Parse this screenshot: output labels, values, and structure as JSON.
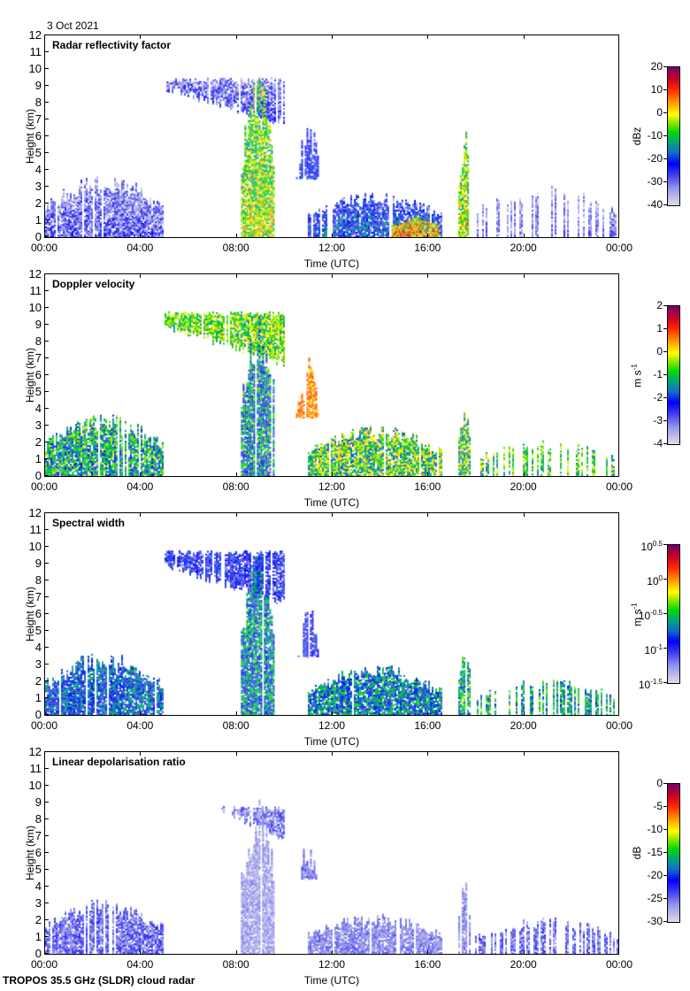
{
  "date_label": "3 Oct 2021",
  "footer": "TROPOS 35.5 GHz (SLDR) cloud radar",
  "chart_data": [
    {
      "type": "heatmap",
      "title": "Radar reflectivity factor",
      "xlabel": "Time (UTC)",
      "ylabel": "Height (km)",
      "xlim_hours": [
        0,
        24
      ],
      "ylim": [
        0,
        12
      ],
      "xticks": [
        "00:00",
        "04:00",
        "08:00",
        "12:00",
        "16:00",
        "20:00",
        "00:00"
      ],
      "yticks": [
        "0",
        "1",
        "2",
        "3",
        "4",
        "5",
        "6",
        "7",
        "8",
        "9",
        "10",
        "11",
        "12"
      ],
      "colorbar": {
        "unit": "dBz",
        "min": -40,
        "max": 20,
        "ticks": [
          "-40",
          "-30",
          "-20",
          "-10",
          "0",
          "10",
          "20"
        ]
      },
      "features": [
        {
          "name": "low cloud 00-05",
          "t": [
            0,
            4.9
          ],
          "h": [
            0,
            3.5
          ],
          "v": -28,
          "spread": 8
        },
        {
          "name": "anvil 05-10",
          "t": [
            5,
            10
          ],
          "h": [
            6.5,
            9.5
          ],
          "v": -28,
          "spread": 8
        },
        {
          "name": "convective core 08-10",
          "t": [
            8.2,
            9.6
          ],
          "h": [
            0,
            9
          ],
          "v": -2,
          "spread": 10
        },
        {
          "name": "mid cloud 10.5-11.5",
          "t": [
            10.5,
            11.5
          ],
          "h": [
            3.5,
            6.5
          ],
          "v": -22,
          "spread": 6
        },
        {
          "name": "low cloud 11-16.5",
          "t": [
            11,
            16.6
          ],
          "h": [
            0,
            2.5
          ],
          "v": -20,
          "spread": 10
        },
        {
          "name": "precip 14.5-16.5",
          "t": [
            14.5,
            16.5
          ],
          "h": [
            0,
            1.2
          ],
          "v": 5,
          "spread": 8
        },
        {
          "name": "shower 17.3-17.8",
          "t": [
            17.3,
            17.8
          ],
          "h": [
            0,
            6
          ],
          "v": 0,
          "spread": 10
        },
        {
          "name": "scattered 18-24",
          "t": [
            18,
            24
          ],
          "h": [
            0,
            3
          ],
          "v": -30,
          "spread": 6
        }
      ]
    },
    {
      "type": "heatmap",
      "title": "Doppler velocity",
      "xlabel": "Time (UTC)",
      "ylabel": "Height (km)",
      "xlim_hours": [
        0,
        24
      ],
      "ylim": [
        0,
        12
      ],
      "xticks": [
        "00:00",
        "04:00",
        "08:00",
        "12:00",
        "16:00",
        "20:00",
        "00:00"
      ],
      "yticks": [
        "0",
        "1",
        "2",
        "3",
        "4",
        "5",
        "6",
        "7",
        "8",
        "9",
        "10",
        "11",
        "12"
      ],
      "colorbar": {
        "unit": "m s-1",
        "unit_base": "m s",
        "unit_sup": "-1",
        "min": -4,
        "max": 2,
        "ticks": [
          "-4",
          "-3",
          "-2",
          "-1",
          "0",
          "1",
          "2"
        ]
      },
      "features": [
        {
          "name": "low cloud 00-05",
          "t": [
            0,
            4.9
          ],
          "h": [
            0,
            3.5
          ],
          "v": -1.2,
          "spread": 1.0
        },
        {
          "name": "anvil 05-10",
          "t": [
            5,
            10
          ],
          "h": [
            6.5,
            9.8
          ],
          "v": -0.6,
          "spread": 0.9
        },
        {
          "name": "convective core 08-10",
          "t": [
            8.2,
            9.6
          ],
          "h": [
            0,
            9
          ],
          "v": -1.6,
          "spread": 1.2
        },
        {
          "name": "mid cloud 10.5-11.5",
          "t": [
            10.5,
            11.5
          ],
          "h": [
            3.5,
            6.5
          ],
          "v": 0.5,
          "spread": 0.5
        },
        {
          "name": "low cloud 11-16.5",
          "t": [
            11,
            16.6
          ],
          "h": [
            0,
            2.8
          ],
          "v": -0.8,
          "spread": 1.2
        },
        {
          "name": "shower 17.3-17.8",
          "t": [
            17.3,
            17.8
          ],
          "h": [
            0,
            4
          ],
          "v": -0.8,
          "spread": 1.2
        },
        {
          "name": "scattered 18-24",
          "t": [
            18,
            24
          ],
          "h": [
            0,
            2
          ],
          "v": -0.8,
          "spread": 1.0
        }
      ]
    },
    {
      "type": "heatmap",
      "title": "Spectral width",
      "xlabel": "Time (UTC)",
      "ylabel": "Height (km)",
      "xlim_hours": [
        0,
        24
      ],
      "ylim": [
        0,
        12
      ],
      "xticks": [
        "00:00",
        "04:00",
        "08:00",
        "12:00",
        "16:00",
        "20:00",
        "00:00"
      ],
      "yticks": [
        "0",
        "1",
        "2",
        "3",
        "4",
        "5",
        "6",
        "7",
        "8",
        "9",
        "10",
        "11",
        "12"
      ],
      "colorbar": {
        "unit": "m s-1",
        "unit_base": "m s",
        "unit_sup": "-1",
        "scale": "log10",
        "min": -1.5,
        "max": 0.5,
        "ticks": [
          {
            "base": "10",
            "exp": "-1.5"
          },
          {
            "base": "10",
            "exp": "-1"
          },
          {
            "base": "10",
            "exp": "-0.5"
          },
          {
            "base": "10",
            "exp": "0"
          },
          {
            "base": "10",
            "exp": "0.5"
          }
        ]
      },
      "features": [
        {
          "name": "low cloud 00-05",
          "t": [
            0,
            4.9
          ],
          "h": [
            0,
            3.5
          ],
          "v": -0.8,
          "spread": 0.3
        },
        {
          "name": "anvil 05-10",
          "t": [
            5,
            10
          ],
          "h": [
            6.5,
            9.8
          ],
          "v": -1.0,
          "spread": 0.25
        },
        {
          "name": "convective core 08-10",
          "t": [
            8.2,
            9.6
          ],
          "h": [
            0,
            9
          ],
          "v": -0.7,
          "spread": 0.3
        },
        {
          "name": "mid cloud 10.5-11.5",
          "t": [
            10.5,
            11.5
          ],
          "h": [
            3.5,
            6.5
          ],
          "v": -1.0,
          "spread": 0.2
        },
        {
          "name": "low cloud 11-16.5",
          "t": [
            11,
            16.6
          ],
          "h": [
            0,
            2.8
          ],
          "v": -0.7,
          "spread": 0.3
        },
        {
          "name": "shower 17.3-17.8",
          "t": [
            17.3,
            17.8
          ],
          "h": [
            0,
            4
          ],
          "v": -0.6,
          "spread": 0.3
        },
        {
          "name": "scattered 18-24",
          "t": [
            18,
            24
          ],
          "h": [
            0,
            2
          ],
          "v": -0.6,
          "spread": 0.3
        }
      ]
    },
    {
      "type": "heatmap",
      "title": "Linear depolarisation ratio",
      "xlabel": "Time (UTC)",
      "ylabel": "Height (km)",
      "xlim_hours": [
        0,
        24
      ],
      "ylim": [
        0,
        12
      ],
      "xticks": [
        "00:00",
        "04:00",
        "08:00",
        "12:00",
        "16:00",
        "20:00",
        "00:00"
      ],
      "yticks": [
        "0",
        "1",
        "2",
        "3",
        "4",
        "5",
        "6",
        "7",
        "8",
        "9",
        "10",
        "11",
        "12"
      ],
      "colorbar": {
        "unit": "dB",
        "min": -30,
        "max": 0,
        "ticks": [
          "-30",
          "-25",
          "-20",
          "-15",
          "-10",
          "-5",
          "0"
        ]
      },
      "features": [
        {
          "name": "low cloud 00-05",
          "t": [
            0,
            4.9
          ],
          "h": [
            0,
            3.0
          ],
          "v": -25,
          "spread": 3
        },
        {
          "name": "anvil 07-10",
          "t": [
            7,
            10
          ],
          "h": [
            6.5,
            8.8
          ],
          "v": -26,
          "spread": 3
        },
        {
          "name": "convective core 08-10",
          "t": [
            8.2,
            9.6
          ],
          "h": [
            0,
            8.5
          ],
          "v": -27,
          "spread": 2
        },
        {
          "name": "mid cloud 10.5-11.5",
          "t": [
            10.5,
            11.5
          ],
          "h": [
            4.5,
            6.5
          ],
          "v": -25,
          "spread": 2
        },
        {
          "name": "low cloud 11-16.5",
          "t": [
            11,
            16.6
          ],
          "h": [
            0,
            2.2
          ],
          "v": -26,
          "spread": 2
        },
        {
          "name": "shower 17.3-17.8",
          "t": [
            17.3,
            17.8
          ],
          "h": [
            0,
            4
          ],
          "v": -26,
          "spread": 2
        },
        {
          "name": "scattered 18-24",
          "t": [
            18,
            24
          ],
          "h": [
            0,
            2
          ],
          "v": -25,
          "spread": 3
        }
      ]
    }
  ]
}
